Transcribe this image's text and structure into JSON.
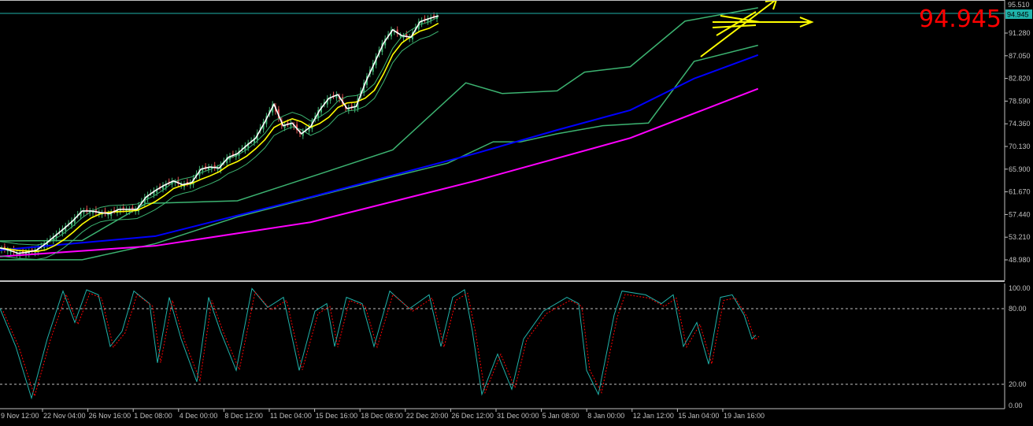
{
  "chart_data": [
    {
      "type": "line",
      "panel": "price",
      "current_price": "94.945",
      "current_price_big": "94.945",
      "top_tick": "95.510",
      "y_ticks": [
        "91.280",
        "87.050",
        "82.820",
        "78.590",
        "74.360",
        "70.130",
        "65.900",
        "61.670",
        "57.440",
        "53.210",
        "48.980"
      ],
      "x_ticks": [
        "9 Nov 12:00",
        "22 Nov 04:00",
        "26 Nov 16:00",
        "1 Dec 08:00",
        "4 Dec 00:00",
        "8 Dec 12:00",
        "11 Dec 04:00",
        "15 Dec 16:00",
        "18 Dec 08:00",
        "22 Dec 20:00",
        "26 Dec 12:00",
        "31 Dec 00:00",
        "5 Jan 08:00",
        "8 Jan 00:00",
        "12 Jan 12:00",
        "15 Jan 04:00",
        "19 Jan 16:00"
      ],
      "close": [
        51.2,
        50.8,
        50.2,
        50.4,
        50.8,
        52.0,
        53.4,
        54.8,
        56.3,
        58.1,
        58.1,
        57.8,
        57.6,
        58.4,
        58.4,
        58.4,
        60.7,
        61.9,
        62.9,
        63.7,
        63.0,
        63.4,
        65.9,
        66.3,
        66.1,
        68.1,
        68.8,
        70.3,
        71.7,
        74.7,
        78.0,
        74.0,
        74.5,
        72.5,
        73.8,
        76.9,
        79.1,
        79.8,
        77.2,
        77.6,
        82.0,
        85.7,
        89.4,
        91.9,
        90.8,
        90.5,
        93.4,
        94.0,
        94.5
      ],
      "ma_slow_blue": [
        [
          0,
          50.8
        ],
        [
          17,
          53.4
        ],
        [
          34,
          60.7
        ],
        [
          52,
          68.8
        ],
        [
          61,
          73.2
        ],
        [
          69,
          76.9
        ],
        [
          76,
          82.8
        ],
        [
          83,
          87.2
        ]
      ],
      "ma_slowest_magenta": [
        [
          0,
          49.6
        ],
        [
          17,
          51.6
        ],
        [
          34,
          56.0
        ],
        [
          52,
          63.7
        ],
        [
          69,
          71.7
        ],
        [
          83,
          80.9
        ]
      ],
      "band_upper": [
        [
          0,
          52.5
        ],
        [
          9,
          52.6
        ],
        [
          16,
          59.5
        ],
        [
          26,
          60
        ],
        [
          35,
          65
        ],
        [
          43,
          69.5
        ],
        [
          51,
          82
        ],
        [
          55,
          80
        ],
        [
          61,
          80.5
        ],
        [
          64,
          84
        ],
        [
          69,
          85
        ],
        [
          75,
          93.5
        ],
        [
          83,
          96
        ]
      ],
      "band_lower": [
        [
          0,
          49.0
        ],
        [
          9,
          49
        ],
        [
          17,
          52
        ],
        [
          26,
          57
        ],
        [
          35,
          61
        ],
        [
          43,
          64.5
        ],
        [
          49,
          67
        ],
        [
          54,
          71
        ],
        [
          57,
          71
        ],
        [
          61,
          72.5
        ],
        [
          66,
          74
        ],
        [
          71,
          74.5
        ],
        [
          76,
          86
        ],
        [
          83,
          89
        ]
      ],
      "colors": {
        "close": "#ffffff",
        "fast_ma": "#ffff00",
        "ma_blue": "#0000ff",
        "ma_magenta": "#ff00ff",
        "bands": "#3cb371",
        "price_line": "#20b2aa",
        "big_price": "#ff0000",
        "arrows": "#ffff00"
      }
    },
    {
      "type": "line",
      "panel": "stochastic",
      "y_ticks": [
        "100.00",
        "80.00",
        "20.00",
        "0.00"
      ],
      "ylim": [
        0,
        100
      ],
      "levels": [
        80,
        20
      ],
      "main": [
        [
          0,
          80
        ],
        [
          20,
          50
        ],
        [
          40,
          9
        ],
        [
          60,
          56
        ],
        [
          80,
          94
        ],
        [
          95,
          69
        ],
        [
          110,
          95
        ],
        [
          125,
          91
        ],
        [
          140,
          50
        ],
        [
          155,
          62
        ],
        [
          170,
          94
        ],
        [
          190,
          84
        ],
        [
          200,
          37
        ],
        [
          215,
          89
        ],
        [
          230,
          56
        ],
        [
          250,
          22
        ],
        [
          265,
          89
        ],
        [
          280,
          62
        ],
        [
          300,
          31
        ],
        [
          320,
          96
        ],
        [
          340,
          81
        ],
        [
          360,
          89
        ],
        [
          380,
          31
        ],
        [
          400,
          78
        ],
        [
          415,
          84
        ],
        [
          425,
          50
        ],
        [
          440,
          89
        ],
        [
          460,
          84
        ],
        [
          475,
          50
        ],
        [
          495,
          94
        ],
        [
          520,
          80
        ],
        [
          545,
          91
        ],
        [
          560,
          50
        ],
        [
          575,
          89
        ],
        [
          590,
          95
        ],
        [
          600,
          62
        ],
        [
          612,
          12
        ],
        [
          632,
          44
        ],
        [
          650,
          16
        ],
        [
          665,
          56
        ],
        [
          690,
          78
        ],
        [
          720,
          89
        ],
        [
          735,
          84
        ],
        [
          745,
          31
        ],
        [
          760,
          12
        ],
        [
          780,
          75
        ],
        [
          790,
          94
        ],
        [
          820,
          91
        ],
        [
          840,
          84
        ],
        [
          855,
          91
        ],
        [
          868,
          50
        ],
        [
          885,
          69
        ],
        [
          900,
          36
        ],
        [
          915,
          89
        ],
        [
          930,
          91
        ],
        [
          945,
          75
        ],
        [
          955,
          56
        ],
        [
          960,
          59
        ]
      ],
      "colors": {
        "main": "#20b2aa",
        "signal": "#ff0000",
        "levels": "#c0c0c0"
      }
    }
  ]
}
